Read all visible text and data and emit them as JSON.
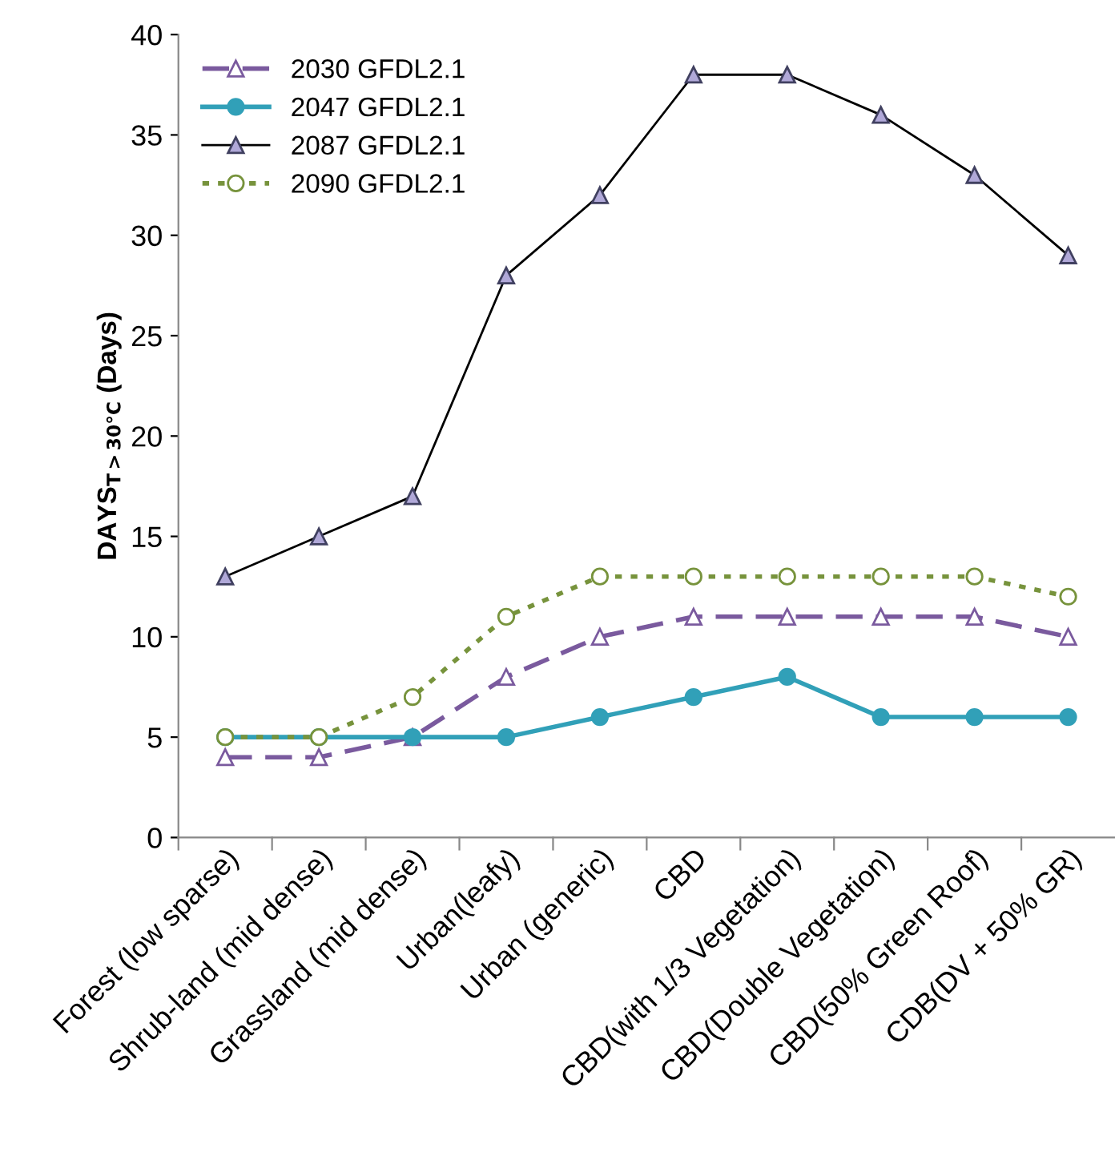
{
  "chart_data": {
    "type": "line",
    "ylabel": "DAYS$_{T>30°C}$ (Days)",
    "categories": [
      "Forest (low sparse)",
      "Shrub-land (mid dense)",
      "Grassland (mid dense)",
      "Urban(leafy)",
      "Urban (generic)",
      "CBD",
      "CBD(with 1/3 Vegetation)",
      "CBD(Double Vegetation)",
      "CBD(50% Green Roof)",
      "CDB(DV + 50% GR)"
    ],
    "series": [
      {
        "name": "2030 GFDL2.1",
        "color": "#7a5a9e",
        "marker": "triangle",
        "line_style": "dashed",
        "values": [
          4,
          4,
          5,
          8,
          10,
          11,
          11,
          11,
          11,
          10
        ]
      },
      {
        "name": "2047 GFDL2.1",
        "color": "#31a0b8",
        "marker": "circle",
        "line_style": "solid",
        "values": [
          5,
          5,
          5,
          5,
          6,
          7,
          8,
          6,
          6,
          6
        ]
      },
      {
        "name": "2087 GFDL2.1",
        "color": "#000000",
        "marker": "triangle",
        "line_style": "solid",
        "values": [
          13,
          15,
          17,
          28,
          32,
          38,
          38,
          36,
          33,
          29
        ]
      },
      {
        "name": "2090 GFDL2.1",
        "color": "#77933c",
        "marker": "circle",
        "line_style": "dotted",
        "values": [
          5,
          5,
          7,
          11,
          13,
          13,
          13,
          13,
          13,
          12
        ]
      }
    ],
    "ylim": [
      0,
      40
    ],
    "yticks": [
      0,
      5,
      10,
      15,
      20,
      25,
      30,
      35,
      40
    ],
    "legend": "top left"
  }
}
